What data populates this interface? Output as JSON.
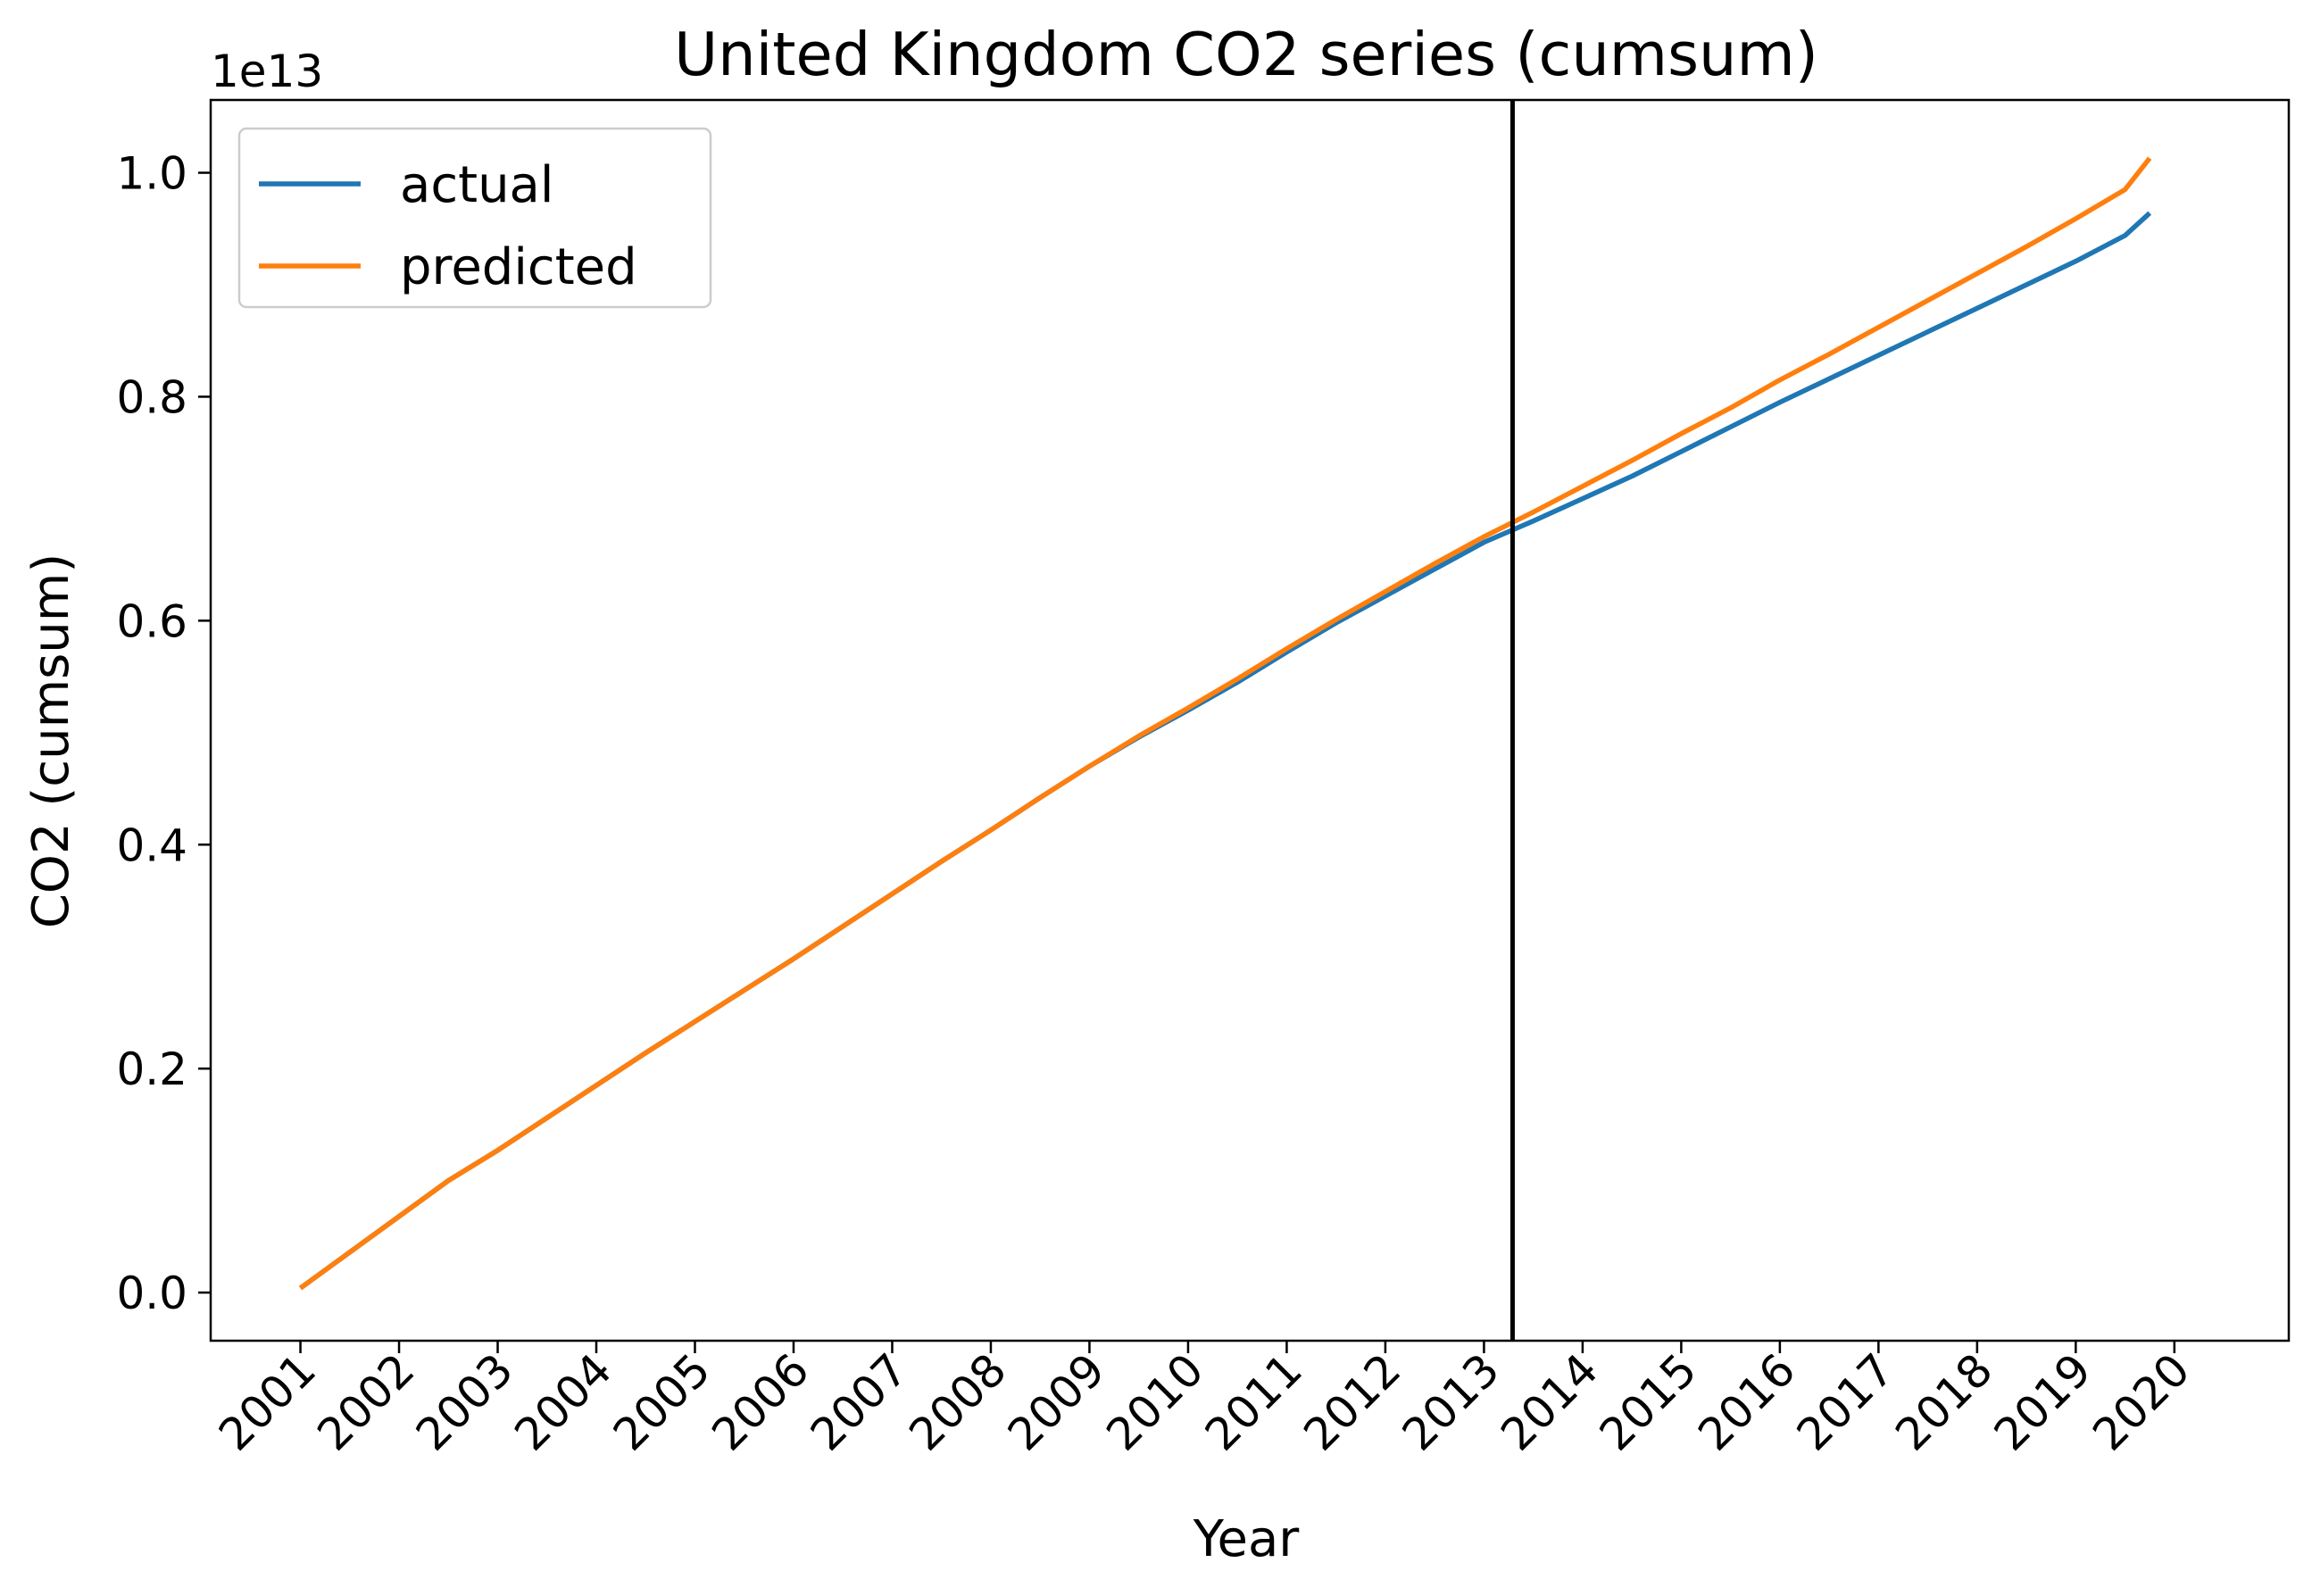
{
  "chart_data": {
    "type": "line",
    "title": "United Kingdom  CO2 series (cumsum)",
    "xlabel": "Year",
    "ylabel": "CO2 (cumsum)",
    "y_offset_text": "1e13",
    "y_scale_exponent": 13,
    "xlim": [
      2000.09,
      2021.16
    ],
    "ylim": [
      -0.043,
      1.065
    ],
    "x_ticks": [
      2001,
      2002,
      2003,
      2004,
      2005,
      2006,
      2007,
      2008,
      2009,
      2010,
      2011,
      2012,
      2013,
      2014,
      2015,
      2016,
      2017,
      2018,
      2019,
      2020
    ],
    "x_tick_labels": [
      "2001",
      "2002",
      "2003",
      "2004",
      "2005",
      "2006",
      "2007",
      "2008",
      "2009",
      "2010",
      "2011",
      "2012",
      "2013",
      "2014",
      "2015",
      "2016",
      "2017",
      "2018",
      "2019",
      "2020"
    ],
    "x_tick_rotation": 45,
    "y_ticks": [
      0.0,
      0.2,
      0.4,
      0.6,
      0.8,
      1.0
    ],
    "y_tick_labels": [
      "0.0",
      "0.2",
      "0.4",
      "0.6",
      "0.8",
      "1.0"
    ],
    "vline_x": 2013.29,
    "legend_position": "upper-left",
    "grid": false,
    "x": [
      2001.0,
      2001.5,
      2002.0,
      2002.5,
      2003.0,
      2003.5,
      2004.0,
      2004.5,
      2005.0,
      2005.5,
      2006.0,
      2006.5,
      2007.0,
      2007.5,
      2008.0,
      2008.5,
      2009.0,
      2009.5,
      2010.0,
      2010.5,
      2011.0,
      2011.5,
      2012.0,
      2012.5,
      2013.0,
      2013.5,
      2014.0,
      2014.5,
      2015.0,
      2015.5,
      2016.0,
      2016.5,
      2017.0,
      2017.5,
      2018.0,
      2018.5,
      2019.0,
      2019.5,
      2019.75
    ],
    "series": [
      {
        "name": "actual",
        "color": "#1f77b4",
        "values": [
          0.004,
          0.036,
          0.068,
          0.1,
          0.127,
          0.156,
          0.185,
          0.214,
          0.242,
          0.27,
          0.298,
          0.327,
          0.356,
          0.385,
          0.413,
          0.442,
          0.47,
          0.496,
          0.52,
          0.545,
          0.572,
          0.598,
          0.622,
          0.646,
          0.67,
          0.689,
          0.709,
          0.729,
          0.751,
          0.773,
          0.795,
          0.816,
          0.837,
          0.858,
          0.879,
          0.9,
          0.921,
          0.944,
          0.964
        ]
      },
      {
        "name": "predicted",
        "color": "#ff7f0e",
        "values": [
          0.004,
          0.036,
          0.068,
          0.1,
          0.127,
          0.156,
          0.185,
          0.214,
          0.242,
          0.27,
          0.298,
          0.327,
          0.356,
          0.385,
          0.413,
          0.442,
          0.47,
          0.497,
          0.522,
          0.548,
          0.575,
          0.601,
          0.626,
          0.651,
          0.675,
          0.697,
          0.72,
          0.743,
          0.767,
          0.79,
          0.815,
          0.838,
          0.862,
          0.886,
          0.91,
          0.934,
          0.959,
          0.985,
          1.013
        ]
      }
    ]
  }
}
